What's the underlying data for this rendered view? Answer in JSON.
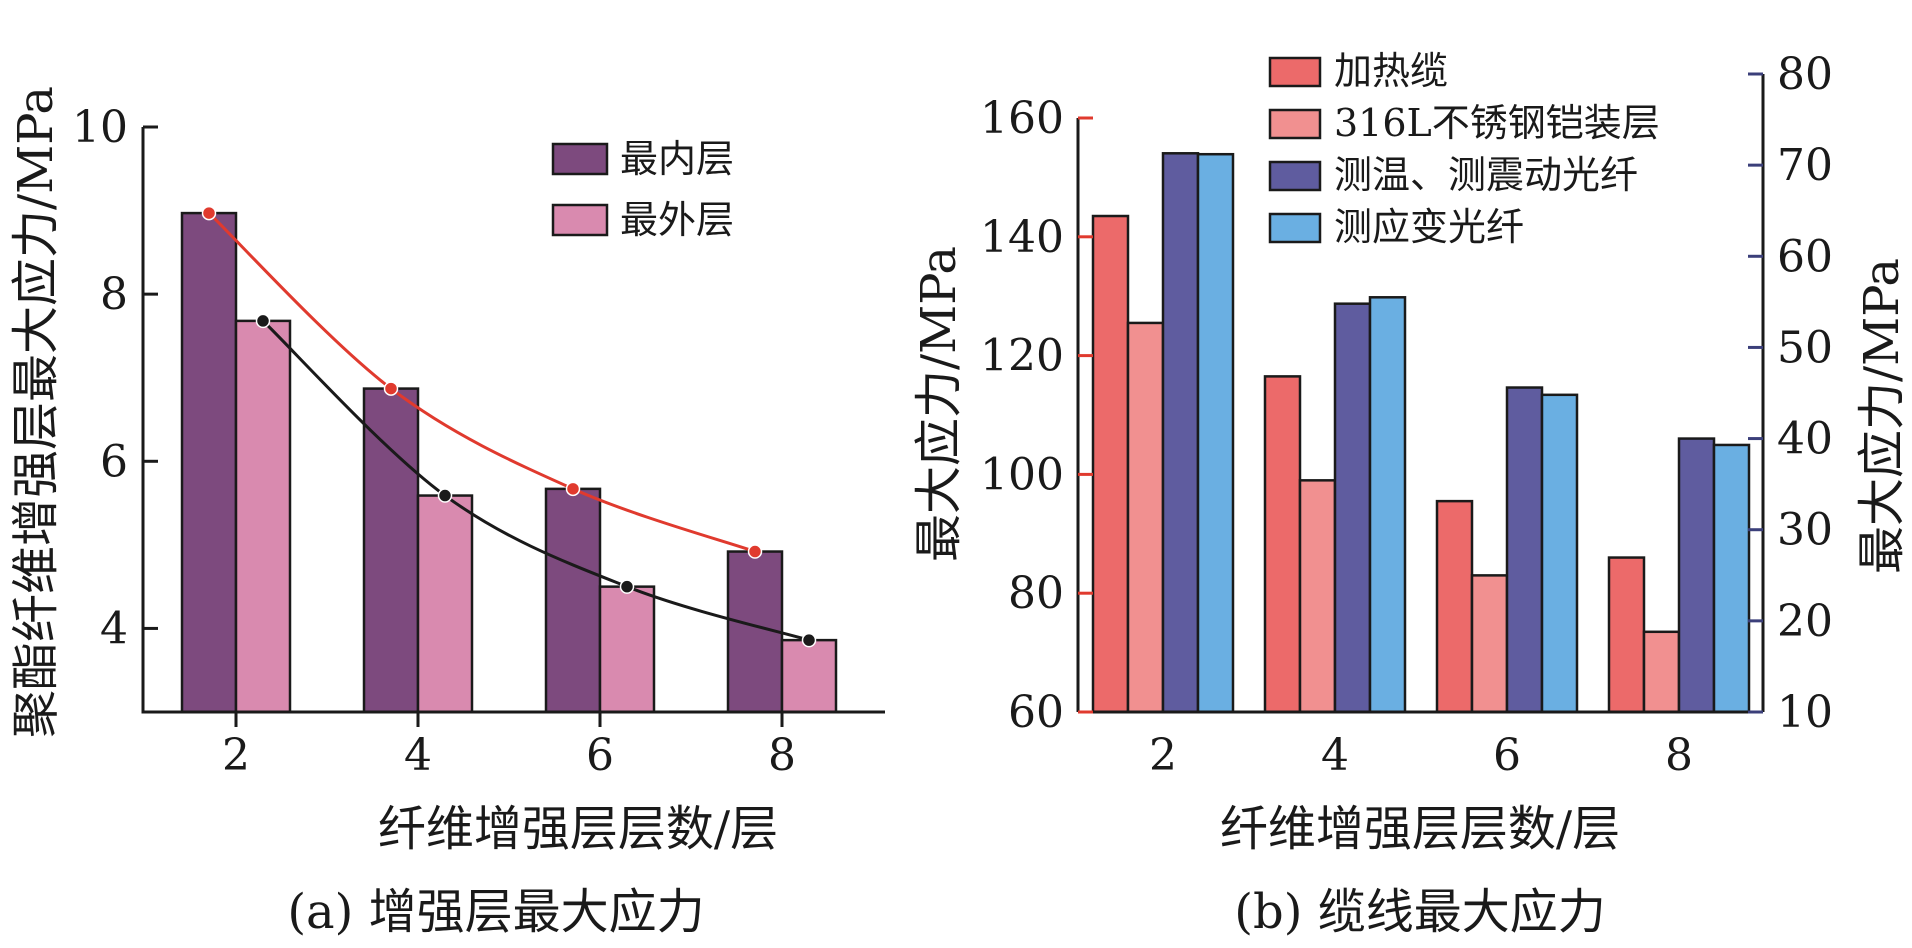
{
  "chart_data": [
    {
      "type": "bar",
      "caption": "(a) 增强层最大应力",
      "xlabel": "纤维增强层层数/层",
      "ylabel": "聚酯纤维增强层最大应力/MPa",
      "categories": [
        "2",
        "4",
        "6",
        "8"
      ],
      "ylim": [
        3,
        10
      ],
      "yticks": [
        4,
        6,
        8,
        10
      ],
      "legend_position": "top-right",
      "series": [
        {
          "name": "最内层",
          "values": [
            8.97,
            6.87,
            5.67,
            4.92
          ],
          "color": "#7d4a7e"
        },
        {
          "name": "最外层",
          "values": [
            7.68,
            5.59,
            4.5,
            3.86
          ],
          "color": "#d98aaf"
        }
      ],
      "trend_lines": [
        {
          "series": "最内层",
          "color": "#e03a2e",
          "marker": "#e03a2e"
        },
        {
          "series": "最外层",
          "color": "#1a1a1a",
          "marker": "#1a1a1a"
        }
      ]
    },
    {
      "type": "bar",
      "caption": "(b) 缆线最大应力",
      "xlabel": "纤维增强层层数/层",
      "ylabel_left": "最大应力/MPa",
      "ylabel_right": "最大应力/MPa",
      "categories": [
        "2",
        "4",
        "6",
        "8"
      ],
      "ylim_left": [
        60,
        160
      ],
      "yticks_left": [
        60,
        80,
        100,
        120,
        140,
        160
      ],
      "ylim_right": [
        10,
        80
      ],
      "yticks_right": [
        10,
        20,
        30,
        40,
        50,
        60,
        70,
        80
      ],
      "left_axis_color": "#e03a2e",
      "right_axis_color": "#3b3f7a",
      "legend_position": "top",
      "series": [
        {
          "name": "加热缆",
          "axis": "left",
          "values": [
            143.5,
            116.5,
            95.5,
            86.0
          ],
          "color": "#ec6a6a"
        },
        {
          "name": "316L不锈钢铠装层",
          "axis": "left",
          "values": [
            125.5,
            99.0,
            83.0,
            73.5
          ],
          "color": "#f19090"
        },
        {
          "name": "测温、测震动光纤",
          "axis": "right",
          "values": [
            71.3,
            54.8,
            45.6,
            40.0
          ],
          "color": "#5f5c9f"
        },
        {
          "name": "测应变光纤",
          "axis": "right",
          "values": [
            71.2,
            55.5,
            44.8,
            39.3
          ],
          "color": "#6aafe2"
        }
      ]
    }
  ]
}
